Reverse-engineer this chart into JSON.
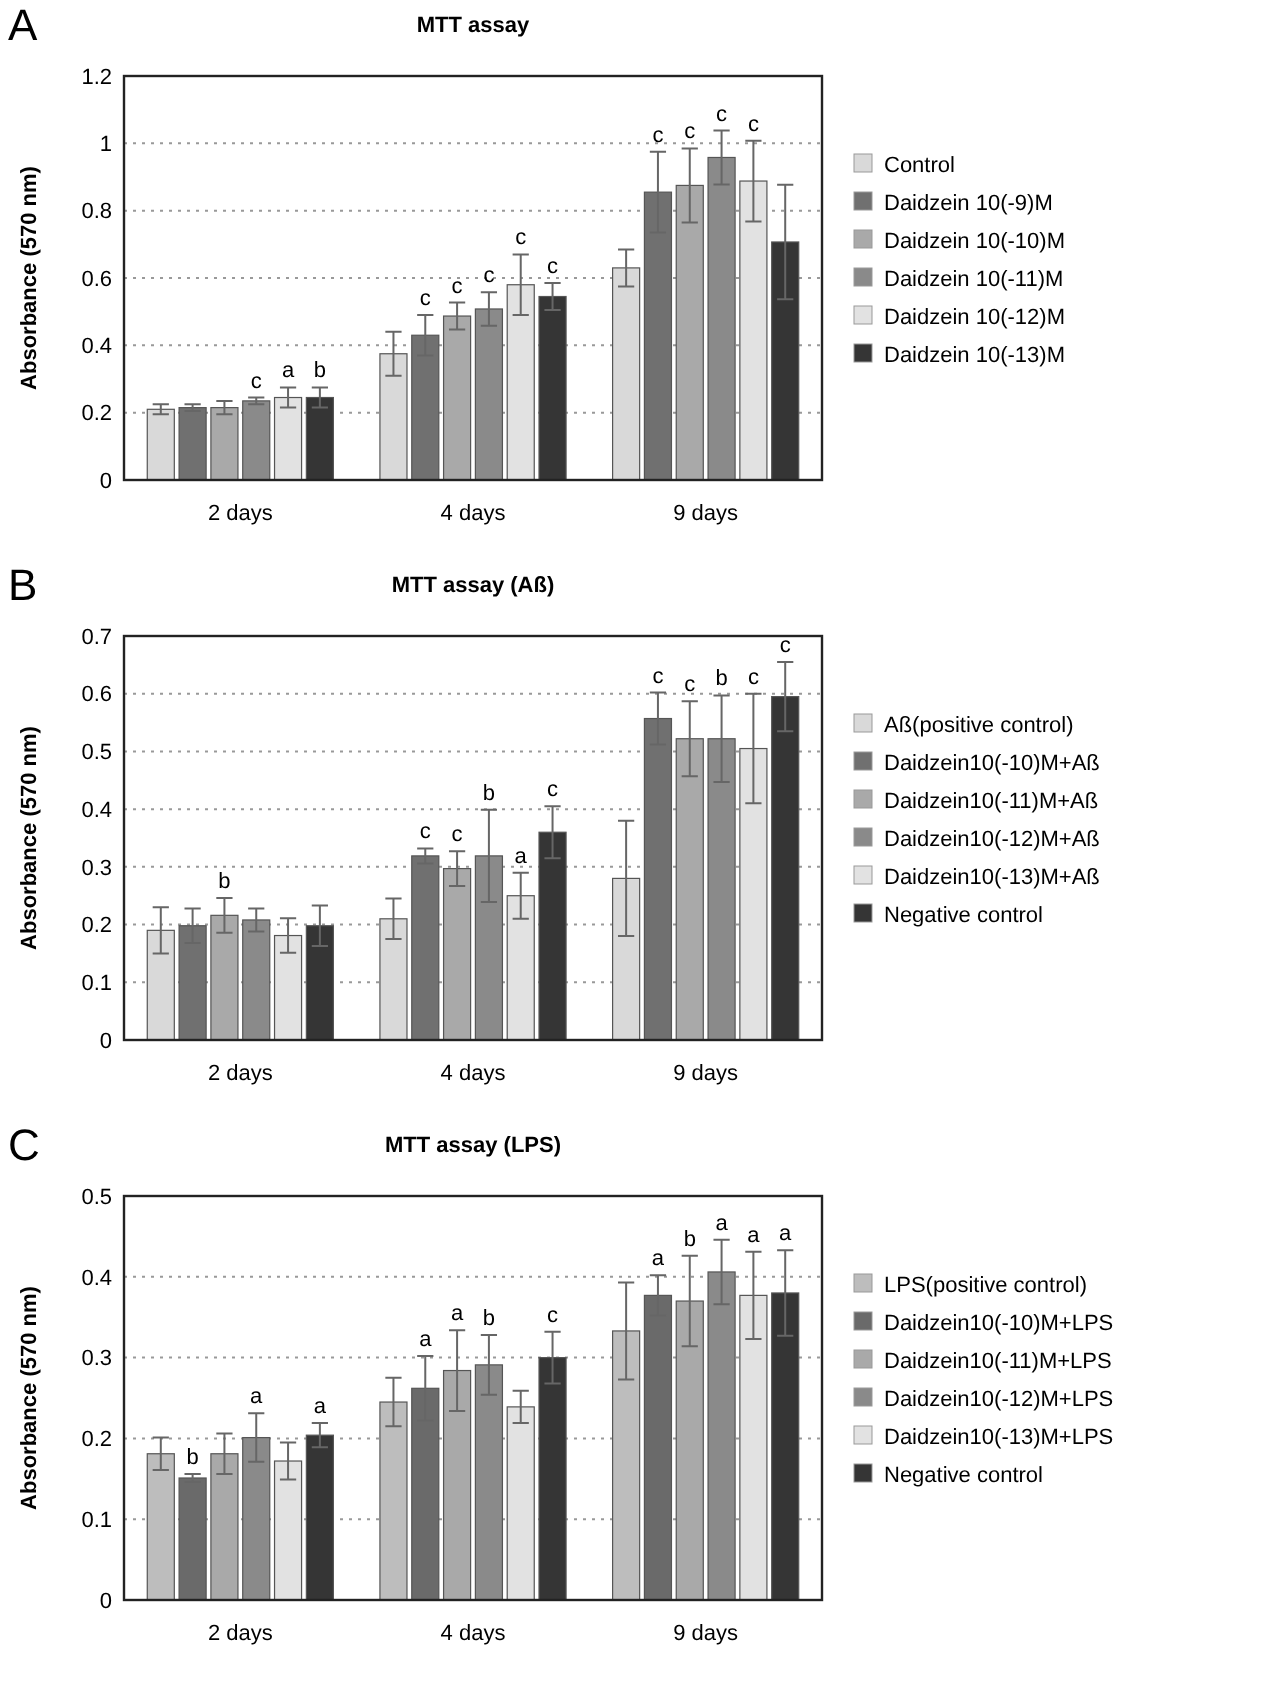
{
  "chart_data": [
    {
      "type": "bar",
      "title": "MTT assay",
      "ylabel": "Absorbance (570 nm)",
      "annotations": [
        "A"
      ],
      "categories": [
        "2 days",
        "4 days",
        "9 days"
      ],
      "ylim": [
        0,
        1.2
      ],
      "yticks": [
        0,
        0.2,
        0.4,
        0.6,
        0.8,
        1.0,
        1.2
      ],
      "grid": "y",
      "legend": "right",
      "series": [
        {
          "name": "Control",
          "color": "#d9d9d9",
          "values": [
            0.21,
            0.375,
            0.63
          ],
          "errors": [
            0.015,
            0.065,
            0.055
          ],
          "value_labels": [
            null,
            null,
            null
          ]
        },
        {
          "name": "Daidzein 10(-9)M",
          "color": "#707070",
          "values": [
            0.215,
            0.43,
            0.855
          ],
          "errors": [
            0.01,
            0.06,
            0.12
          ],
          "value_labels": [
            null,
            "c",
            "c"
          ]
        },
        {
          "name": "Daidzein 10(-10)M",
          "color": "#a9a9a9",
          "values": [
            0.215,
            0.487,
            0.875
          ],
          "errors": [
            0.02,
            0.04,
            0.11
          ],
          "value_labels": [
            null,
            "c",
            "c"
          ]
        },
        {
          "name": "Daidzein 10(-11)M",
          "color": "#8a8a8a",
          "values": [
            0.235,
            0.508,
            0.958
          ],
          "errors": [
            0.01,
            0.05,
            0.08
          ],
          "value_labels": [
            "c",
            "c",
            "c"
          ]
        },
        {
          "name": "Daidzein 10(-12)M",
          "color": "#e2e2e2",
          "values": [
            0.245,
            0.58,
            0.888
          ],
          "errors": [
            0.03,
            0.09,
            0.12
          ],
          "value_labels": [
            "a",
            "c",
            "c"
          ]
        },
        {
          "name": "Daidzein 10(-13)M",
          "color": "#353535",
          "values": [
            0.245,
            0.545,
            0.707
          ],
          "errors": [
            0.03,
            0.04,
            0.17
          ],
          "value_labels": [
            "b",
            "c",
            null
          ]
        }
      ]
    },
    {
      "type": "bar",
      "title": "MTT assay (Aß)",
      "ylabel": "Absorbance (570 nm)",
      "annotations": [
        "B"
      ],
      "categories": [
        "2 days",
        "4 days",
        "9 days"
      ],
      "ylim": [
        0,
        0.7
      ],
      "yticks": [
        0,
        0.1,
        0.2,
        0.3,
        0.4,
        0.5,
        0.6,
        0.7
      ],
      "grid": "y",
      "legend": "right",
      "series": [
        {
          "name": "Aß(positive control)",
          "color": "#d9d9d9",
          "values": [
            0.19,
            0.21,
            0.28
          ],
          "errors": [
            0.04,
            0.035,
            0.1
          ],
          "value_labels": [
            null,
            null,
            null
          ]
        },
        {
          "name": "Daidzein10(-10)M+Aß",
          "color": "#707070",
          "values": [
            0.198,
            0.319,
            0.557
          ],
          "errors": [
            0.03,
            0.013,
            0.045
          ],
          "value_labels": [
            null,
            "c",
            "c"
          ]
        },
        {
          "name": "Daidzein10(-11)M+Aß",
          "color": "#a9a9a9",
          "values": [
            0.216,
            0.297,
            0.522
          ],
          "errors": [
            0.03,
            0.03,
            0.065
          ],
          "value_labels": [
            "b",
            "c",
            "c"
          ]
        },
        {
          "name": "Daidzein10(-12)M+Aß",
          "color": "#8a8a8a",
          "values": [
            0.208,
            0.319,
            0.522
          ],
          "errors": [
            0.02,
            0.08,
            0.075
          ],
          "value_labels": [
            null,
            "b",
            "b"
          ]
        },
        {
          "name": "Daidzein10(-13)M+Aß",
          "color": "#e2e2e2",
          "values": [
            0.181,
            0.25,
            0.505
          ],
          "errors": [
            0.03,
            0.04,
            0.095
          ],
          "value_labels": [
            null,
            "a",
            "c"
          ]
        },
        {
          "name": "Negative control",
          "color": "#353535",
          "values": [
            0.198,
            0.36,
            0.595
          ],
          "errors": [
            0.035,
            0.045,
            0.06
          ],
          "value_labels": [
            null,
            "c",
            "c"
          ]
        }
      ]
    },
    {
      "type": "bar",
      "title": "MTT assay (LPS)",
      "ylabel": "Absorbance (570 nm)",
      "annotations": [
        "C"
      ],
      "categories": [
        "2 days",
        "4 days",
        "9 days"
      ],
      "ylim": [
        0,
        0.5
      ],
      "yticks": [
        0,
        0.1,
        0.2,
        0.3,
        0.4,
        0.5
      ],
      "grid": "y",
      "legend": "right",
      "series": [
        {
          "name": "LPS(positive control)",
          "color": "#bdbdbd",
          "values": [
            0.181,
            0.245,
            0.333
          ],
          "errors": [
            0.02,
            0.03,
            0.06
          ],
          "value_labels": [
            null,
            null,
            null
          ]
        },
        {
          "name": "Daidzein10(-10)M+LPS",
          "color": "#6a6a6a",
          "values": [
            0.151,
            0.262,
            0.377
          ],
          "errors": [
            0.005,
            0.04,
            0.025
          ],
          "value_labels": [
            "b",
            "a",
            "a"
          ]
        },
        {
          "name": "Daidzein10(-11)M+LPS",
          "color": "#a9a9a9",
          "values": [
            0.181,
            0.284,
            0.37
          ],
          "errors": [
            0.025,
            0.05,
            0.056
          ],
          "value_labels": [
            null,
            "a",
            "b"
          ]
        },
        {
          "name": "Daidzein10(-12)M+LPS",
          "color": "#8a8a8a",
          "values": [
            0.201,
            0.291,
            0.406
          ],
          "errors": [
            0.03,
            0.037,
            0.04
          ],
          "value_labels": [
            "a",
            "b",
            "a"
          ]
        },
        {
          "name": "Daidzein10(-13)M+LPS",
          "color": "#e2e2e2",
          "values": [
            0.172,
            0.239,
            0.377
          ],
          "errors": [
            0.023,
            0.02,
            0.054
          ],
          "value_labels": [
            null,
            null,
            "a"
          ]
        },
        {
          "name": "Negative control",
          "color": "#353535",
          "values": [
            0.204,
            0.3,
            0.38
          ],
          "errors": [
            0.015,
            0.032,
            0.053
          ],
          "value_labels": [
            "a",
            "c",
            "a"
          ]
        }
      ]
    }
  ]
}
